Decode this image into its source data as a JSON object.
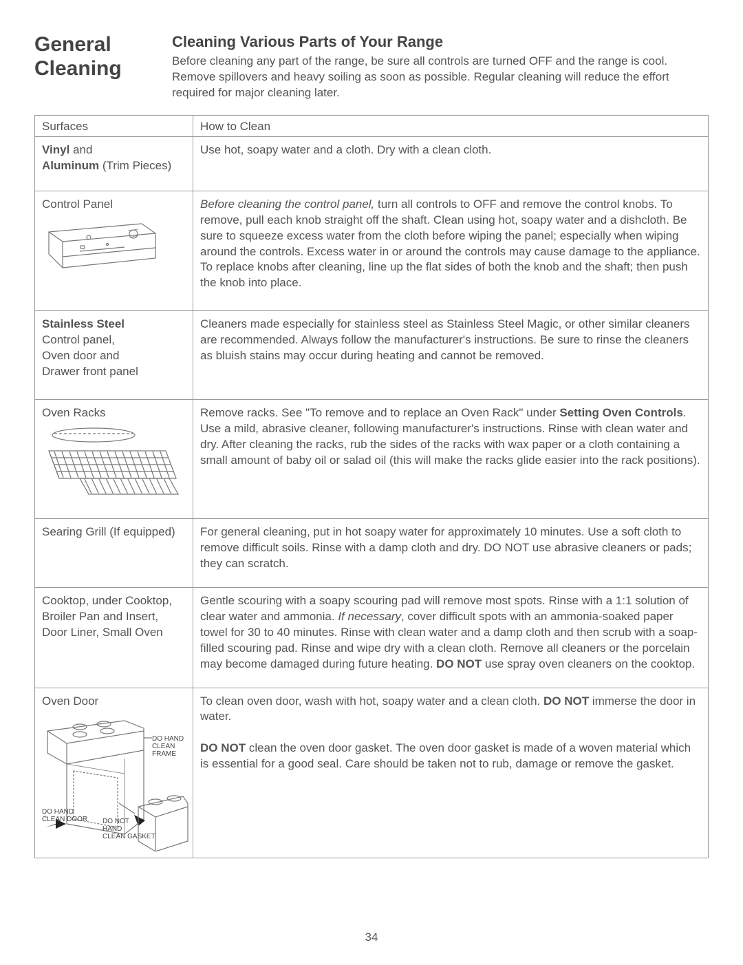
{
  "page_number": "34",
  "header": {
    "title_line1": "General",
    "title_line2": "Cleaning",
    "sub_heading": "Cleaning Various Parts of Your Range",
    "intro": "Before cleaning any part of the range, be sure all controls are turned OFF and the range is cool. Remove spillovers and heavy soiling as soon as possible. Regular cleaning will reduce the effort required for major cleaning later."
  },
  "table_headers": {
    "col1": "Surfaces",
    "col2": "How to Clean"
  },
  "rows": [
    {
      "surface_html": "<span class='bold'>Vinyl</span> and<br><span class='bold'>Aluminum</span> (Trim Pieces)",
      "instructions_html": "Use hot, soapy water and a cloth. Dry with a clean cloth."
    },
    {
      "surface_html": "Control Panel",
      "icon": "control-panel",
      "instructions_html": "<span class='italic'>Before cleaning the control panel,</span> turn all controls to OFF and remove the control knobs. To remove, pull each knob straight off the shaft. Clean using hot, soapy water and a dishcloth. Be sure to squeeze excess water from the cloth before wiping the panel; especially when wiping around the controls. Excess water in or around the controls may cause damage to the appliance. To replace knobs after cleaning, line up the flat sides of both the knob and the shaft; then push the knob into place."
    },
    {
      "surface_html": "<span class='bold'>Stainless Steel</span><br>Control panel,<br>Oven door and<br>Drawer front panel",
      "instructions_html": "Cleaners made especially for stainless steel as Stainless Steel Magic, or other similar cleaners are recommended. Always follow the manufacturer's instructions. Be sure to rinse the cleaners as bluish stains may occur during heating and cannot be removed."
    },
    {
      "surface_html": "Oven Racks",
      "icon": "oven-racks",
      "instructions_html": "Remove racks. See \"To remove and to replace an Oven Rack\" under <span class='bold'>Setting Oven Controls</span>. Use a mild, abrasive cleaner, following manufacturer's instructions. Rinse with clean water and dry. After cleaning the racks, rub the sides of the racks with wax paper or a cloth containing a small amount of baby oil or salad oil (this will make the racks glide easier into the rack positions)."
    },
    {
      "surface_html": "Searing Grill (If equipped)",
      "instructions_html": "For general cleaning, put in hot soapy water for approximately 10 minutes. Use a soft cloth to remove difficult soils. Rinse with a damp cloth and dry. DO NOT use abrasive cleaners or pads; they can scratch."
    },
    {
      "surface_html": "Cooktop, under Cooktop,<br>Broiler Pan and Insert,<br>Door Liner, Small Oven",
      "instructions_html": "Gentle scouring with a soapy scouring pad will remove most spots. Rinse with a 1:1 solution of clear water and ammonia. <span class='italic'>If necessary</span>, cover difficult spots with an ammonia-soaked paper towel for 30 to 40 minutes. Rinse with clean water and a damp cloth and then scrub with a soap-filled scouring pad. Rinse and wipe dry with a clean cloth. Remove all cleaners or the porcelain may become damaged during future heating. <span class='bold'>DO NOT</span> use spray oven cleaners on the cooktop."
    },
    {
      "surface_html": "Oven Door",
      "icon": "oven-door",
      "door_labels": {
        "clean_frame": "DO HAND\nCLEAN FRAME",
        "clean_door": "DO HAND\nCLEAN DOOR",
        "no_clean_gasket": "DO NOT\nHAND\nCLEAN GASKET"
      },
      "instructions_html": "To clean oven door, wash with hot, soapy water and a clean cloth. <span class='bold'>DO NOT</span> immerse the door in water.<br><br><span class='bold'>DO NOT</span> clean the oven door gasket. The oven door gasket is made of a woven material which is essential for a good seal. Care should be taken not to rub, damage or remove the gasket."
    }
  ]
}
